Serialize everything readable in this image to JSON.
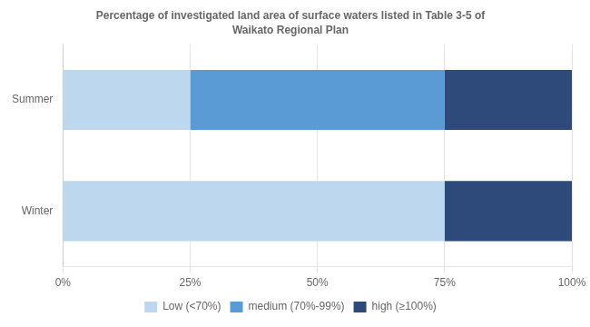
{
  "chart_data": {
    "type": "bar",
    "orientation": "horizontal",
    "stacked": true,
    "title": "Percentage of investigated land area of surface waters listed in Table 3-5 of",
    "subtitle": "Waikato Regional Plan",
    "categories": [
      "Summer",
      "Winter"
    ],
    "series": [
      {
        "name": "Low (<70%)",
        "color": "#BDD7EE",
        "values": [
          25,
          75
        ]
      },
      {
        "name": "medium (70%-99%)",
        "color": "#5B9BD5",
        "values": [
          50,
          0
        ]
      },
      {
        "name": "high (≥100%)",
        "color": "#2E4A7A",
        "values": [
          25,
          25
        ]
      }
    ],
    "xlim": [
      0,
      100
    ],
    "xticks": [
      {
        "value": 0,
        "label": "0%"
      },
      {
        "value": 25,
        "label": "25%"
      },
      {
        "value": 50,
        "label": "50%"
      },
      {
        "value": 75,
        "label": "75%"
      },
      {
        "value": 100,
        "label": "100%"
      }
    ],
    "grid": true,
    "legend": "bottom"
  }
}
